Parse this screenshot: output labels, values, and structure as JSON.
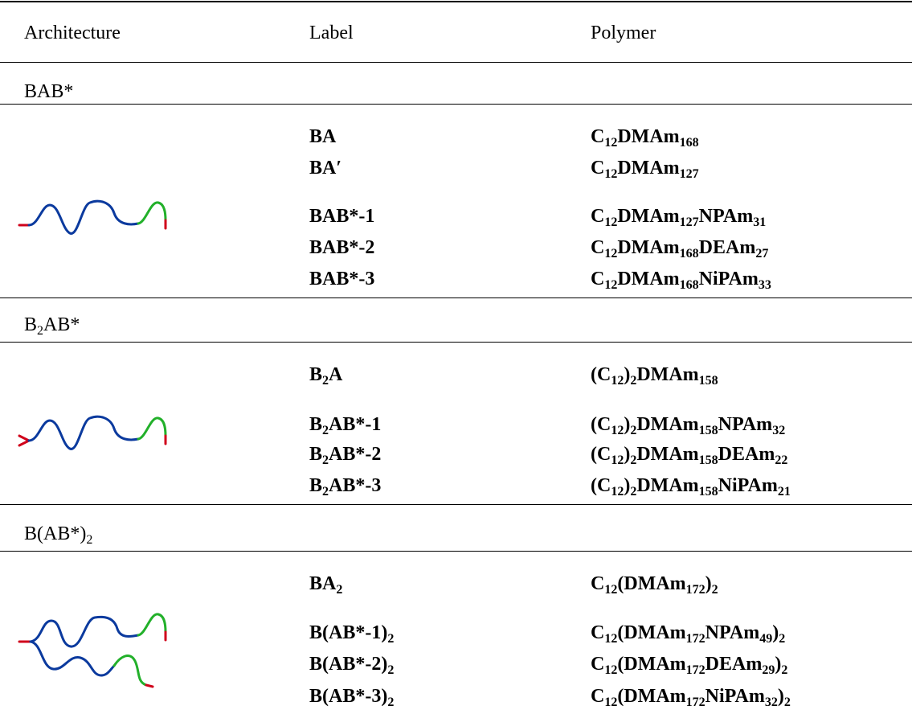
{
  "table": {
    "header": [
      "Architecture",
      "Label",
      "Polymer"
    ],
    "sections": [
      {
        "title": [
          {
            "text": "BAB*"
          }
        ],
        "rows": [
          {
            "label": [
              {
                "text": "BA"
              }
            ],
            "polymer": [
              {
                "text": "C"
              },
              {
                "sub": "12"
              },
              {
                "text": "DMAm"
              },
              {
                "sub": "168"
              }
            ]
          },
          {
            "label": [
              {
                "text": "BA′"
              }
            ],
            "polymer": [
              {
                "text": "C"
              },
              {
                "sub": "12"
              },
              {
                "text": "DMAm"
              },
              {
                "sub": "127"
              }
            ]
          },
          {
            "label": [
              {
                "text": "BAB*-1"
              }
            ],
            "polymer": [
              {
                "text": "C"
              },
              {
                "sub": "12"
              },
              {
                "text": "DMAm"
              },
              {
                "sub": "127"
              },
              {
                "text": "NPAm"
              },
              {
                "sub": "31"
              }
            ]
          },
          {
            "label": [
              {
                "text": "BAB*-2"
              }
            ],
            "polymer": [
              {
                "text": "C"
              },
              {
                "sub": "12"
              },
              {
                "text": "DMAm"
              },
              {
                "sub": "168"
              },
              {
                "text": "DEAm"
              },
              {
                "sub": "27"
              }
            ]
          },
          {
            "label": [
              {
                "text": "BAB*-3"
              }
            ],
            "polymer": [
              {
                "text": "C"
              },
              {
                "sub": "12"
              },
              {
                "text": "DMAm"
              },
              {
                "sub": "168"
              },
              {
                "text": "NiPAm"
              },
              {
                "sub": "33"
              }
            ]
          }
        ]
      },
      {
        "title": [
          {
            "text": "B"
          },
          {
            "sub": "2"
          },
          {
            "text": "AB*"
          }
        ],
        "rows": [
          {
            "label": [
              {
                "text": "B"
              },
              {
                "sub": "2"
              },
              {
                "text": "A"
              }
            ],
            "polymer": [
              {
                "text": "(C"
              },
              {
                "sub": "12"
              },
              {
                "text": ")"
              },
              {
                "sub": "2"
              },
              {
                "text": "DMAm"
              },
              {
                "sub": "158"
              }
            ]
          },
          {
            "label": [
              {
                "text": "B"
              },
              {
                "sub": "2"
              },
              {
                "text": "AB*-1"
              }
            ],
            "polymer": [
              {
                "text": "(C"
              },
              {
                "sub": "12"
              },
              {
                "text": ")"
              },
              {
                "sub": "2"
              },
              {
                "text": "DMAm"
              },
              {
                "sub": "158"
              },
              {
                "text": "NPAm"
              },
              {
                "sub": "32"
              }
            ]
          },
          {
            "label": [
              {
                "text": "B"
              },
              {
                "sub": "2"
              },
              {
                "text": "AB*-2"
              }
            ],
            "polymer": [
              {
                "text": "(C"
              },
              {
                "sub": "12"
              },
              {
                "text": ")"
              },
              {
                "sub": "2"
              },
              {
                "text": "DMAm"
              },
              {
                "sub": "158"
              },
              {
                "text": "DEAm"
              },
              {
                "sub": "22"
              }
            ]
          },
          {
            "label": [
              {
                "text": "B"
              },
              {
                "sub": "2"
              },
              {
                "text": "AB*-3"
              }
            ],
            "polymer": [
              {
                "text": "(C"
              },
              {
                "sub": "12"
              },
              {
                "text": ")"
              },
              {
                "sub": "2"
              },
              {
                "text": "DMAm"
              },
              {
                "sub": "158"
              },
              {
                "text": "NiPAm"
              },
              {
                "sub": "21"
              }
            ]
          }
        ]
      },
      {
        "title": [
          {
            "text": "B(AB*)"
          },
          {
            "sub": "2"
          }
        ],
        "rows": [
          {
            "label": [
              {
                "text": "BA"
              },
              {
                "sub": "2"
              }
            ],
            "polymer": [
              {
                "text": "C"
              },
              {
                "sub": "12"
              },
              {
                "text": "(DMAm"
              },
              {
                "sub": "172"
              },
              {
                "text": ")"
              },
              {
                "sub": "2"
              }
            ]
          },
          {
            "label": [
              {
                "text": "B(AB*-1)"
              },
              {
                "sub": "2"
              }
            ],
            "polymer": [
              {
                "text": "C"
              },
              {
                "sub": "12"
              },
              {
                "text": "(DMAm"
              },
              {
                "sub": "172"
              },
              {
                "text": "NPAm"
              },
              {
                "sub": "49"
              },
              {
                "text": ")"
              },
              {
                "sub": "2"
              }
            ]
          },
          {
            "label": [
              {
                "text": "B(AB*-2)"
              },
              {
                "sub": "2"
              }
            ],
            "polymer": [
              {
                "text": "C"
              },
              {
                "sub": "12"
              },
              {
                "text": "(DMAm"
              },
              {
                "sub": "172"
              },
              {
                "text": "DEAm"
              },
              {
                "sub": "29"
              },
              {
                "text": ")"
              },
              {
                "sub": "2"
              }
            ]
          },
          {
            "label": [
              {
                "text": "B(AB*-3)"
              },
              {
                "sub": "2"
              }
            ],
            "polymer": [
              {
                "text": "C"
              },
              {
                "sub": "12"
              },
              {
                "text": "(DMAm"
              },
              {
                "sub": "172"
              },
              {
                "text": "NiPAm"
              },
              {
                "sub": "32"
              },
              {
                "text": ")"
              },
              {
                "sub": "2"
              }
            ]
          }
        ]
      }
    ]
  }
}
